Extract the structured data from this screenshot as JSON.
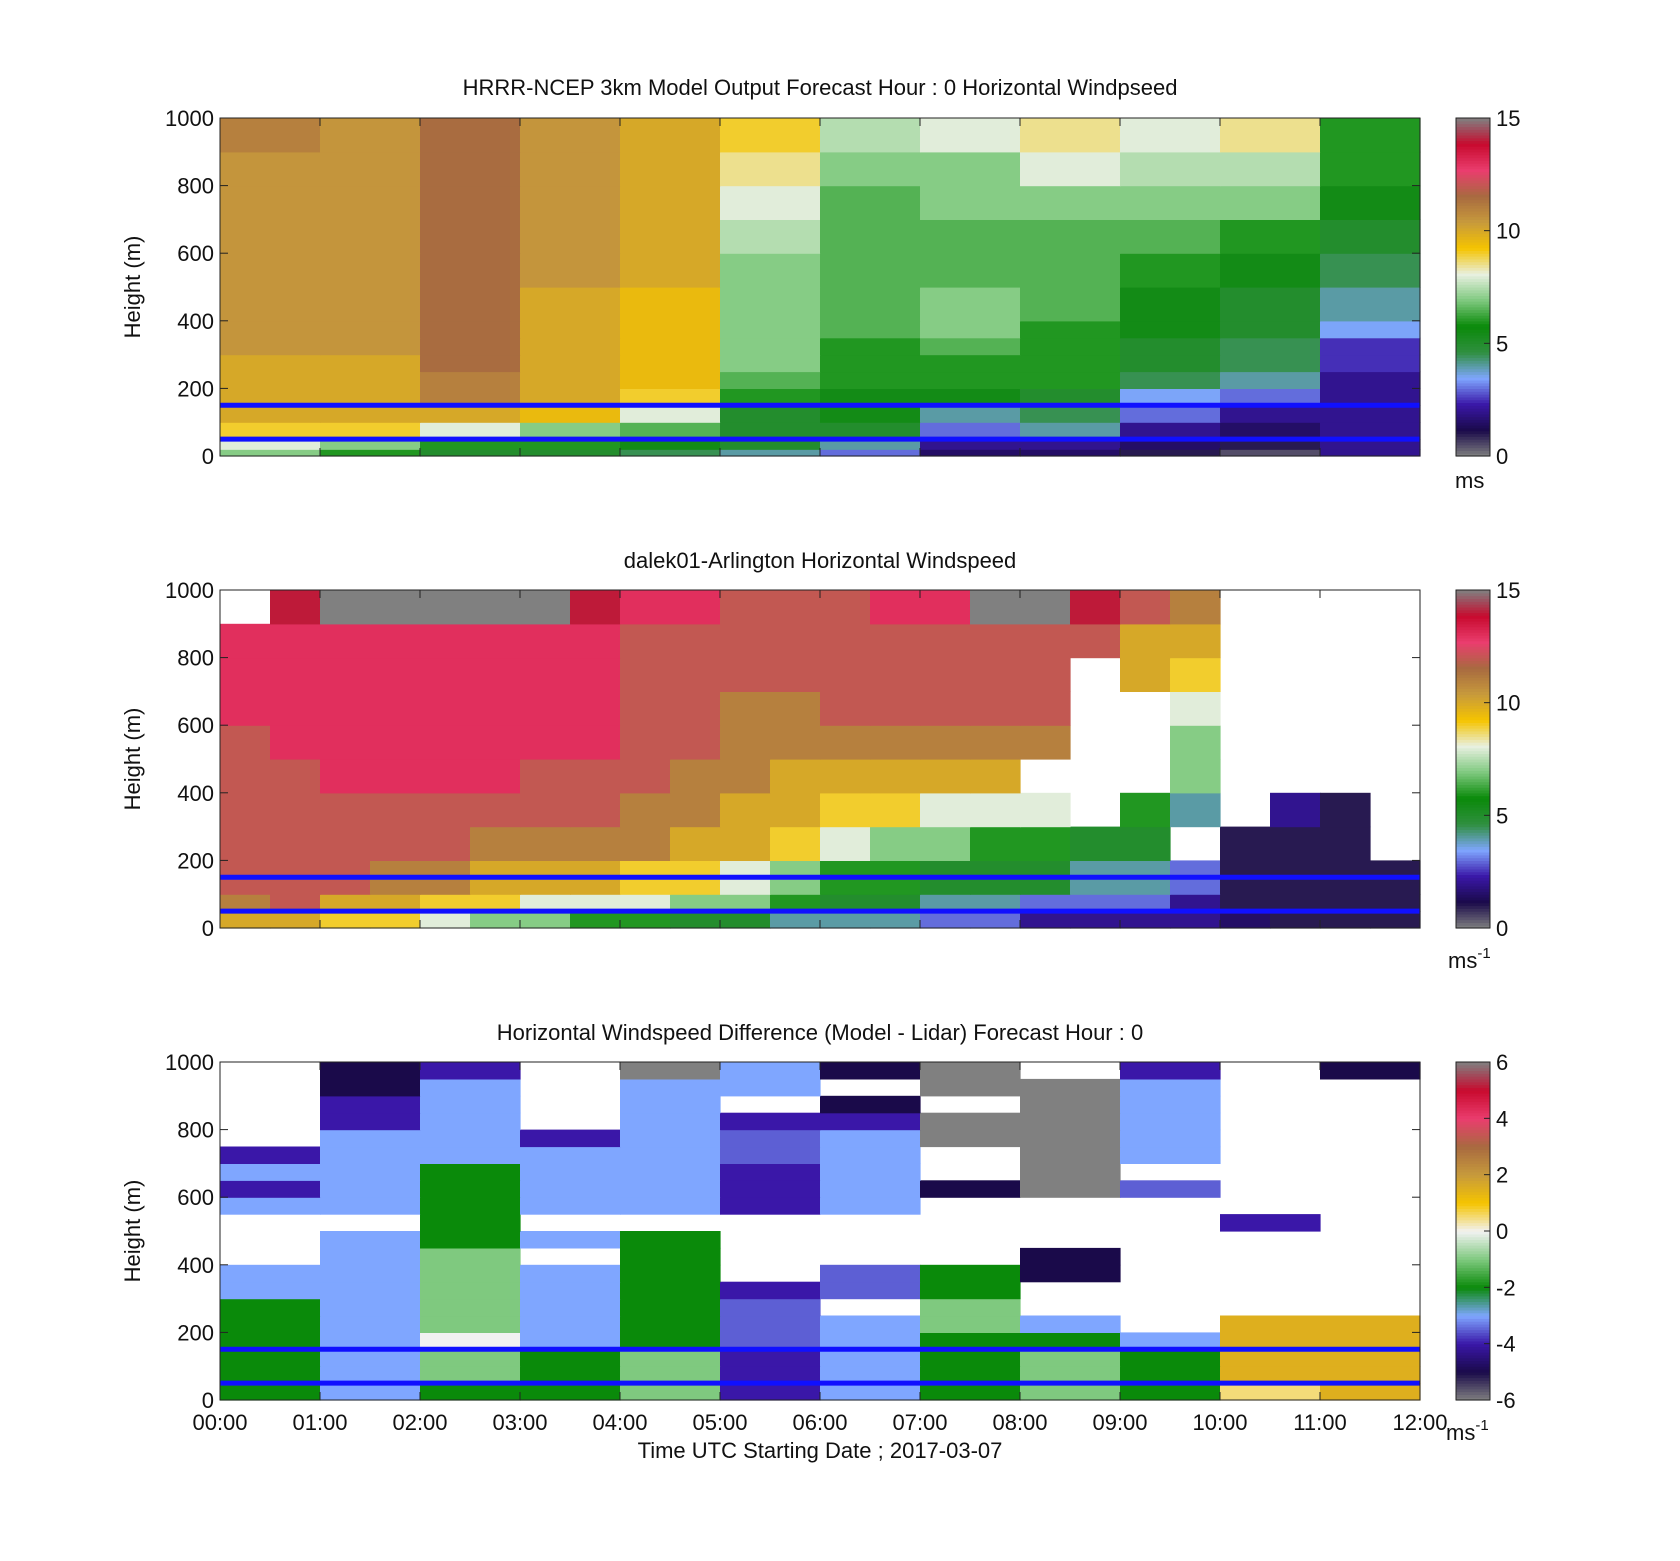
{
  "colors": {
    "speed_scale": [
      "#808080",
      "#1a0a4a",
      "#3a17a8",
      "#7fa6ff",
      "#2f8f3f",
      "#0a8a0a",
      "#7fc97f",
      "#e8f0e0",
      "#f5c400",
      "#c79a3c",
      "#a86a40",
      "#ea3d6e",
      "#c80a2e",
      "#808080"
    ],
    "diff_scale": [
      "#808080",
      "#1a0a4a",
      "#3a17a8",
      "#7fa6ff",
      "#0a8a0a",
      "#7fc97f",
      "#f2f2f2",
      "#f5c400",
      "#c79a3c",
      "#a86a40",
      "#ea3d6e",
      "#c80a2e",
      "#808080"
    ],
    "reference_line": "#1010ff",
    "grid_gray": "#808080"
  },
  "x_axis": {
    "xlabel": "Time UTC  Starting Date ; 2017-03-07",
    "tick_labels": [
      "00:00",
      "01:00",
      "02:00",
      "03:00",
      "04:00",
      "05:00",
      "06:00",
      "07:00",
      "08:00",
      "09:00",
      "10:00",
      "11:00",
      "12:00"
    ]
  },
  "chart_data": [
    {
      "type": "heatmap",
      "title": "HRRR-NCEP 3km Model Output   Forecast Hour : 0 Horizontal Windpseed",
      "ylabel": "Height (m)",
      "xlim": [
        0,
        12
      ],
      "ylim": [
        0,
        1000
      ],
      "yticks": [
        "0",
        "200",
        "400",
        "600",
        "800",
        "1000"
      ],
      "colorbar": {
        "min": 0,
        "max": 15,
        "ticks": [
          "0",
          "5",
          "10",
          "15"
        ],
        "unit_label": "ms",
        "unit_sup": ""
      },
      "reference_lines_m": [
        50,
        150
      ],
      "x_hours": [
        0,
        1,
        2,
        3,
        4,
        5,
        6,
        7,
        8,
        9,
        10,
        11
      ],
      "levels_m": [
        [
          0,
          20
        ],
        [
          20,
          50
        ],
        [
          50,
          100
        ],
        [
          100,
          150
        ],
        [
          150,
          200
        ],
        [
          200,
          250
        ],
        [
          250,
          300
        ],
        [
          300,
          350
        ],
        [
          350,
          400
        ],
        [
          400,
          500
        ],
        [
          500,
          600
        ],
        [
          600,
          700
        ],
        [
          700,
          800
        ],
        [
          800,
          900
        ],
        [
          900,
          1000
        ]
      ],
      "z": [
        [
          7,
          6,
          5,
          5,
          4.5,
          4,
          3,
          1.5,
          1.5,
          1,
          0.5,
          2
        ],
        [
          8,
          7,
          6,
          6,
          5.5,
          5,
          4,
          2,
          2,
          1.5,
          1,
          2
        ],
        [
          9,
          9,
          8,
          7,
          6.5,
          5,
          5,
          3,
          4,
          2,
          1.5,
          2
        ],
        [
          10,
          10,
          10,
          9.5,
          8,
          5,
          5.5,
          4,
          4.5,
          3,
          2,
          2
        ],
        [
          10,
          10,
          11,
          10,
          9,
          6,
          5.5,
          5.5,
          5,
          3.5,
          3,
          2
        ],
        [
          10,
          10,
          11,
          10,
          9.5,
          6.5,
          6,
          6,
          6,
          4.5,
          4,
          2
        ],
        [
          10,
          10,
          11.5,
          10,
          9.5,
          7,
          6,
          6,
          6,
          5,
          4.5,
          2.5
        ],
        [
          10.5,
          10.5,
          11.5,
          10,
          9.5,
          7,
          6,
          6.5,
          6,
          5,
          4.5,
          2.5
        ],
        [
          10.5,
          10.5,
          11.5,
          10,
          9.5,
          7,
          6.5,
          7,
          6,
          5.5,
          5,
          3.5
        ],
        [
          10.5,
          10.5,
          11.5,
          10,
          9.5,
          7,
          6.5,
          7,
          6.5,
          5.5,
          5,
          4
        ],
        [
          10.5,
          10.5,
          11.5,
          10.5,
          10,
          7,
          6.5,
          6.5,
          6.5,
          6,
          5.5,
          4.5
        ],
        [
          10.5,
          10.5,
          11.5,
          10.5,
          10,
          7.5,
          6.5,
          6.5,
          6.5,
          6.5,
          6,
          5
        ],
        [
          10.5,
          10.5,
          11.5,
          10.5,
          10,
          8,
          6.5,
          7,
          7,
          7,
          7,
          5.5
        ],
        [
          10.5,
          10.5,
          11.5,
          10.5,
          10,
          8.5,
          7,
          7,
          8,
          7.5,
          7.5,
          6
        ],
        [
          11,
          10.5,
          11.5,
          10.5,
          10,
          9,
          7.5,
          8,
          8.5,
          8,
          8.5,
          6
        ]
      ]
    },
    {
      "type": "heatmap",
      "title": "dalek01-Arlington  Horizontal Windspeed",
      "ylabel": "Height (m)",
      "xlim": [
        0,
        12
      ],
      "ylim": [
        0,
        1000
      ],
      "yticks": [
        "0",
        "200",
        "400",
        "600",
        "800",
        "1000"
      ],
      "colorbar": {
        "min": 0,
        "max": 15,
        "ticks": [
          "0",
          "5",
          "10",
          "15"
        ],
        "unit_label": "ms",
        "unit_sup": "-1"
      },
      "reference_lines_m": [
        50,
        150
      ],
      "x_hours": [
        0,
        0.5,
        1,
        1.5,
        2,
        2.5,
        3,
        3.5,
        4,
        4.5,
        5,
        5.5,
        6,
        6.5,
        7,
        7.5,
        8,
        8.5,
        9,
        9.5,
        10,
        10.5,
        11,
        11.5
      ],
      "levels_m": [
        [
          0,
          50
        ],
        [
          50,
          100
        ],
        [
          100,
          200
        ],
        [
          200,
          300
        ],
        [
          300,
          400
        ],
        [
          400,
          500
        ],
        [
          500,
          600
        ],
        [
          600,
          700
        ],
        [
          700,
          800
        ],
        [
          800,
          900
        ],
        [
          900,
          1000
        ]
      ],
      "z": [
        [
          10,
          10,
          9,
          9,
          8,
          7,
          7,
          6,
          6,
          5,
          5,
          4,
          4,
          4,
          3,
          3,
          2,
          2,
          2,
          2,
          1.5,
          1,
          1,
          1
        ],
        [
          11,
          12,
          10,
          10,
          9,
          9,
          8,
          8,
          8,
          7,
          7,
          6,
          5,
          5,
          4,
          4,
          3,
          3,
          3,
          2,
          1,
          1,
          1,
          1
        ],
        [
          12,
          12,
          12,
          11,
          11,
          10,
          10,
          10,
          9,
          9,
          8,
          7,
          6,
          6,
          5,
          5,
          5,
          4,
          4,
          3,
          1,
          1,
          1,
          1
        ],
        [
          12,
          12,
          12,
          12,
          12,
          11,
          11,
          11,
          11,
          10,
          10,
          9,
          8,
          7,
          7,
          6,
          6,
          5,
          5,
          null,
          1,
          1,
          1,
          null
        ],
        [
          12,
          12,
          12,
          12,
          12,
          12,
          12,
          12,
          11,
          11,
          10,
          10,
          9,
          9,
          8,
          8,
          8,
          null,
          6,
          4,
          null,
          2,
          1,
          null
        ],
        [
          12,
          12,
          13,
          13,
          13,
          13,
          12,
          12,
          12,
          11,
          11,
          10,
          10,
          10,
          10,
          10,
          null,
          null,
          null,
          7,
          null,
          null,
          null,
          null
        ],
        [
          12,
          13,
          13,
          13,
          13,
          13,
          13,
          13,
          12,
          12,
          11,
          11,
          11,
          11,
          11,
          11,
          11,
          null,
          null,
          7,
          null,
          null,
          null,
          null
        ],
        [
          13,
          13,
          13,
          13,
          13,
          13,
          13,
          13,
          12,
          12,
          11,
          11,
          12,
          12,
          12,
          12,
          12,
          null,
          null,
          8,
          null,
          null,
          null,
          null
        ],
        [
          13,
          13,
          13,
          13,
          13,
          13,
          13,
          13,
          12,
          12,
          12,
          12,
          12,
          12,
          12,
          12,
          12,
          null,
          10,
          9,
          null,
          null,
          null,
          null
        ],
        [
          13,
          13,
          13,
          13,
          13,
          13,
          13,
          13,
          12,
          12,
          12,
          12,
          12,
          12,
          12,
          12,
          12,
          12,
          10,
          10,
          null,
          null,
          null,
          null
        ],
        [
          null,
          14,
          15,
          15,
          15,
          15,
          15,
          14,
          13,
          13,
          12,
          12,
          12,
          13,
          13,
          15,
          15,
          14,
          12,
          11,
          null,
          null,
          null,
          null
        ]
      ]
    },
    {
      "type": "heatmap",
      "title": "Horizontal Windspeed Difference (Model - Lidar) Forecast Hour : 0",
      "ylabel": "Height (m)",
      "xlim": [
        0,
        12
      ],
      "ylim": [
        0,
        1000
      ],
      "yticks": [
        "0",
        "200",
        "400",
        "600",
        "800",
        "1000"
      ],
      "colorbar": {
        "min": -6,
        "max": 6,
        "ticks": [
          "-6",
          "-4",
          "-2",
          "0",
          "2",
          "4",
          "6"
        ],
        "unit_label": "ms",
        "unit_sup": "-1"
      },
      "reference_lines_m": [
        50,
        150
      ],
      "x_hours": [
        0,
        1,
        2,
        3,
        4,
        5,
        6,
        7,
        8,
        9,
        10,
        11
      ],
      "levels_m": [
        [
          0,
          50
        ],
        [
          50,
          100
        ],
        [
          100,
          150
        ],
        [
          150,
          200
        ],
        [
          200,
          250
        ],
        [
          250,
          300
        ],
        [
          300,
          350
        ],
        [
          350,
          400
        ],
        [
          400,
          450
        ],
        [
          450,
          500
        ],
        [
          500,
          550
        ],
        [
          550,
          600
        ],
        [
          600,
          650
        ],
        [
          650,
          700
        ],
        [
          700,
          750
        ],
        [
          750,
          800
        ],
        [
          800,
          850
        ],
        [
          850,
          900
        ],
        [
          900,
          950
        ],
        [
          950,
          1000
        ]
      ],
      "z": [
        [
          -2,
          -3,
          -2,
          -2,
          -1,
          -4,
          -3,
          -2,
          -1,
          -2,
          0.5,
          1.5
        ],
        [
          -2,
          -3,
          -1,
          -2,
          -1,
          -4,
          -3,
          -2,
          -1,
          -2,
          1.5,
          1.5
        ],
        [
          -2,
          -3,
          -1,
          -2,
          -1,
          -4,
          -3,
          -2,
          -1,
          -2,
          1.5,
          1.5
        ],
        [
          -2,
          -3,
          0,
          -3,
          -2,
          -3.5,
          -3,
          -2,
          -2,
          -3,
          1.5,
          1.5
        ],
        [
          -2,
          -3,
          -1,
          -3,
          -2,
          -3.5,
          -3,
          -1,
          -3,
          null,
          1.5,
          1.5
        ],
        [
          -2,
          -3,
          -1,
          -3,
          -2,
          -3.5,
          null,
          -1,
          null,
          null,
          null,
          null
        ],
        [
          -3,
          -3,
          -1,
          -3,
          -2,
          -4,
          -3.5,
          -2,
          null,
          null,
          null,
          null
        ],
        [
          -3,
          -3,
          -1,
          -3,
          -2,
          null,
          -3.5,
          -2,
          -5,
          null,
          null,
          null
        ],
        [
          null,
          -3,
          -1,
          null,
          -2,
          null,
          null,
          null,
          -5,
          null,
          null,
          null
        ],
        [
          null,
          -3,
          -2,
          -3,
          -2,
          null,
          null,
          null,
          null,
          null,
          null,
          null
        ],
        [
          null,
          null,
          -2,
          null,
          null,
          null,
          null,
          null,
          null,
          null,
          -4,
          null
        ],
        [
          -3,
          -3,
          -2,
          -3,
          -3,
          -4,
          -3,
          null,
          null,
          null,
          null,
          null
        ],
        [
          -4,
          -3,
          -2,
          -3,
          -3,
          -4,
          -3,
          -5,
          -6,
          -3.5,
          null,
          null
        ],
        [
          -3,
          -3,
          -2,
          -3,
          -3,
          -4,
          -3,
          null,
          -6,
          null,
          null,
          null
        ],
        [
          -4,
          -3,
          -3,
          -3,
          -3,
          -3.5,
          -3,
          null,
          -6,
          -3,
          null,
          null
        ],
        [
          null,
          -3,
          -3,
          -4,
          -3,
          -3.5,
          -3,
          -6,
          -6,
          -3,
          null,
          null
        ],
        [
          null,
          -4,
          -3,
          null,
          -3,
          -4,
          -4,
          -6,
          -6,
          -3,
          null,
          null
        ],
        [
          null,
          -4,
          -3,
          null,
          -3,
          null,
          -5,
          null,
          -6,
          -3,
          null,
          null
        ],
        [
          null,
          -5,
          -3,
          null,
          -3,
          -3,
          null,
          -6,
          -6,
          -3,
          null,
          null
        ],
        [
          null,
          -5,
          -4,
          null,
          -6,
          -3,
          -5,
          -6,
          null,
          -4,
          null,
          -5
        ]
      ]
    }
  ]
}
